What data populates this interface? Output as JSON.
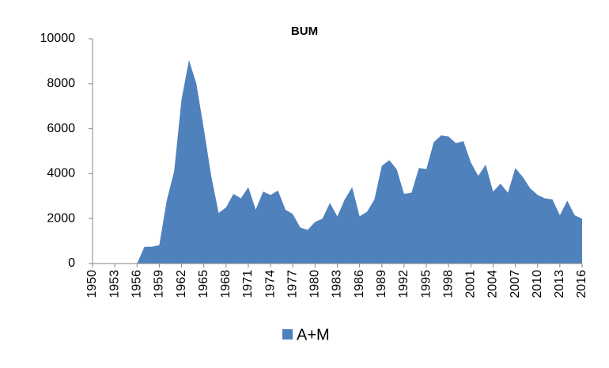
{
  "chart_data": {
    "type": "area",
    "title": "BUM",
    "x": [
      1950,
      1951,
      1952,
      1953,
      1954,
      1955,
      1956,
      1957,
      1958,
      1959,
      1960,
      1961,
      1962,
      1963,
      1964,
      1965,
      1966,
      1967,
      1968,
      1969,
      1970,
      1971,
      1972,
      1973,
      1974,
      1975,
      1976,
      1977,
      1978,
      1979,
      1980,
      1981,
      1982,
      1983,
      1984,
      1985,
      1986,
      1987,
      1988,
      1989,
      1990,
      1991,
      1992,
      1993,
      1994,
      1995,
      1996,
      1997,
      1998,
      1999,
      2000,
      2001,
      2002,
      2003,
      2004,
      2005,
      2006,
      2007,
      2008,
      2009,
      2010,
      2011,
      2012,
      2013,
      2014,
      2015,
      2016
    ],
    "series": [
      {
        "name": "A+M",
        "color": "#4f81bd",
        "values": [
          0,
          0,
          0,
          0,
          0,
          0,
          0,
          750,
          750,
          820,
          2800,
          4100,
          7300,
          9050,
          8000,
          6000,
          3900,
          2250,
          2500,
          3100,
          2900,
          3400,
          2400,
          3200,
          3050,
          3250,
          2400,
          2200,
          1600,
          1500,
          1850,
          2000,
          2700,
          2100,
          2850,
          3400,
          2100,
          2300,
          2850,
          4350,
          4600,
          4200,
          3100,
          3150,
          4250,
          4200,
          5400,
          5700,
          5650,
          5350,
          5450,
          4500,
          3900,
          4400,
          3200,
          3550,
          3150,
          4250,
          3850,
          3350,
          3050,
          2900,
          2850,
          2150,
          2800,
          2150,
          2000
        ]
      }
    ],
    "xlim": [
      1950,
      2016
    ],
    "xticks": [
      1950,
      1953,
      1956,
      1959,
      1962,
      1965,
      1968,
      1971,
      1974,
      1977,
      1980,
      1983,
      1986,
      1989,
      1992,
      1995,
      1998,
      2001,
      2004,
      2007,
      2010,
      2013,
      2016
    ],
    "ylim": [
      0,
      10000
    ],
    "yticks": [
      0,
      2000,
      4000,
      6000,
      8000,
      10000
    ],
    "grid": false,
    "legend": "bottom"
  }
}
